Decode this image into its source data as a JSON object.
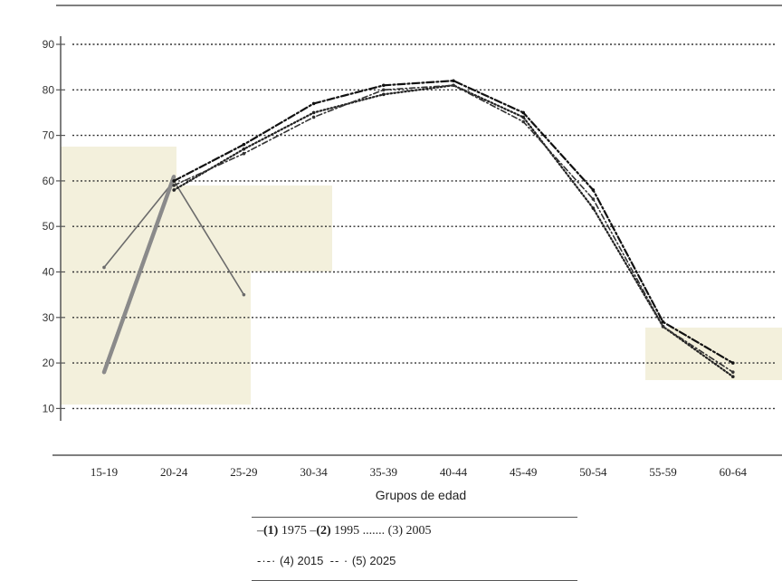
{
  "chart_data": {
    "type": "line",
    "xlabel": "Grupos de edad",
    "ylabel": "",
    "categories": [
      "15-19",
      "20-24",
      "25-29",
      "30-34",
      "35-39",
      "40-44",
      "45-49",
      "50-54",
      "55-59",
      "60-64"
    ],
    "y_ticks": [
      "90",
      "80",
      "70",
      "60",
      "50",
      "40",
      "30",
      "20",
      "10"
    ],
    "ylim": [
      10,
      92
    ],
    "grid": true,
    "legend_position": "bottom",
    "series": [
      {
        "name": "1975",
        "marker": "(1)",
        "values": [
          41,
          60,
          35,
          null,
          null,
          null,
          null,
          null,
          null,
          null
        ]
      },
      {
        "name": "1995",
        "marker": "(2)",
        "values": [
          18,
          61,
          null,
          null,
          null,
          null,
          null,
          null,
          null,
          null
        ]
      },
      {
        "name": "2005",
        "marker": "(3)",
        "values": [
          null,
          58,
          67,
          75,
          79,
          81,
          74,
          54,
          28,
          17
        ]
      },
      {
        "name": "2015",
        "marker": "(4)",
        "values": [
          null,
          59,
          66,
          74,
          80,
          81,
          73,
          56,
          28,
          18
        ]
      },
      {
        "name": "2025",
        "marker": "(5)",
        "values": [
          null,
          60,
          68,
          77,
          81,
          82,
          75,
          58,
          29,
          20
        ]
      }
    ]
  },
  "legend": {
    "row1_prefix_1": "–",
    "marker1": "(1)",
    "label1": "1975",
    "row1_prefix_2": "–",
    "marker2": "(2)",
    "label2": "1995",
    "dots3": ".......",
    "marker3": "(3)",
    "label3": "2005",
    "dash4": "-·-·",
    "marker4": "(4)",
    "label4": "2015",
    "dash5": "-- ·",
    "marker5": "(5)",
    "label5": "2025"
  },
  "colors": {
    "axis": "#555555",
    "grid": "#333333",
    "shade": "#f3f0dc",
    "s1975": "#6b6b6b",
    "s1995": "#8a8a8a",
    "s2005": "#222222",
    "s2015": "#333333",
    "s2025": "#111111"
  }
}
